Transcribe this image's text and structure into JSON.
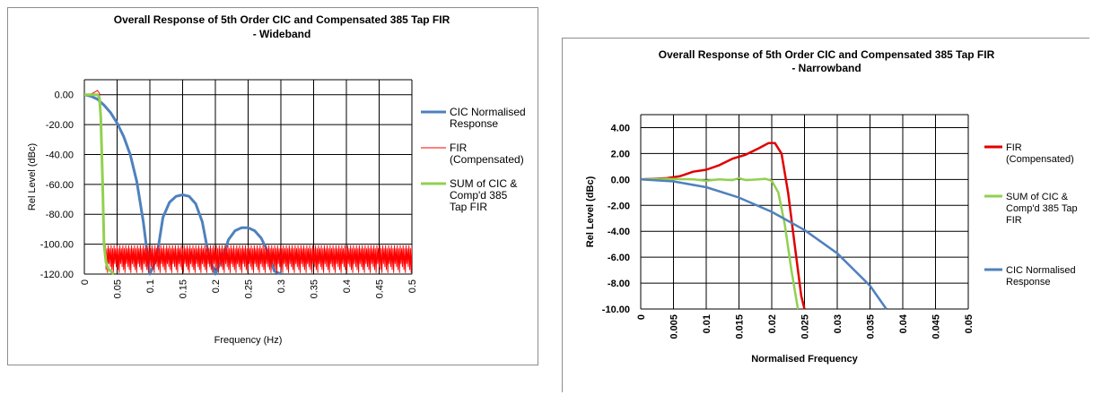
{
  "chart_data": [
    {
      "type": "line",
      "title": "Overall Response of 5th Order CIC and Compensated 385 Tap FIR",
      "subtitle": "- Wideband",
      "xlabel": "Frequency (Hz)",
      "ylabel": "Rel Level  (dBc)",
      "xlim": [
        0,
        0.5
      ],
      "ylim": [
        -120,
        10
      ],
      "x_ticks": [
        "0",
        "0.05",
        "0.1",
        "0.15",
        "0.2",
        "0.25",
        "0.3",
        "0.35",
        "0.4",
        "0.45",
        "0.5"
      ],
      "y_ticks": [
        "0.00",
        "-20.00",
        "-40.00",
        "-60.00",
        "-80.00",
        "-100.00",
        "-120.00"
      ],
      "grid": true,
      "legend_position": "right",
      "series": [
        {
          "name": "CIC Normalised Response",
          "color": "#4f81bd",
          "x": [
            0,
            0.01,
            0.02,
            0.03,
            0.04,
            0.05,
            0.06,
            0.07,
            0.08,
            0.09,
            0.1,
            0.11,
            0.12,
            0.13,
            0.14,
            0.15,
            0.16,
            0.17,
            0.18,
            0.19,
            0.2,
            0.21,
            0.22,
            0.23,
            0.24,
            0.25,
            0.26,
            0.27,
            0.28,
            0.29,
            0.3
          ],
          "y": [
            0,
            -1,
            -3,
            -7,
            -12,
            -19,
            -28,
            -40,
            -58,
            -85,
            -120,
            -110,
            -82,
            -72,
            -68,
            -67,
            -68,
            -73,
            -85,
            -108,
            -120,
            -110,
            -97,
            -91,
            -89,
            -89,
            -91,
            -96,
            -105,
            -118,
            -120
          ]
        },
        {
          "name": "FIR (Compensated)",
          "color": "#ff0000",
          "x": [
            0,
            0.01,
            0.015,
            0.02,
            0.023,
            0.025,
            0.028,
            0.03,
            0.032,
            0.5
          ],
          "y": [
            0,
            0.5,
            1.5,
            2.8,
            1,
            -10,
            -60,
            -100,
            -110,
            -108
          ]
        },
        {
          "name": "SUM  of CIC & Comp'd  385 Tap FIR",
          "color": "#92d050",
          "x": [
            0,
            0.01,
            0.02,
            0.023,
            0.025,
            0.028,
            0.03,
            0.033,
            0.036,
            0.04,
            0.045
          ],
          "y": [
            0,
            0,
            0,
            -2,
            -15,
            -60,
            -100,
            -112,
            -116,
            -118,
            -120
          ]
        }
      ]
    },
    {
      "type": "line",
      "title": "Overall Response  of 5th Order CIC and Compensated  385 Tap FIR",
      "subtitle": "- Narrowband",
      "xlabel": "Normalised Frequency",
      "ylabel": "Rel Level  (dBc)",
      "xlim": [
        0,
        0.05
      ],
      "ylim": [
        -10,
        5
      ],
      "x_ticks": [
        "0",
        "0.005",
        "0.01",
        "0.015",
        "0.02",
        "0.025",
        "0.03",
        "0.035",
        "0.04",
        "0.045",
        "0.05"
      ],
      "y_ticks": [
        "4.00",
        "2.00",
        "0.00",
        "-2.00",
        "-4.00",
        "-6.00",
        "-8.00",
        "-10.00"
      ],
      "grid": true,
      "legend_position": "right",
      "series": [
        {
          "name": "FIR (Compensated)",
          "color": "#e00000",
          "x": [
            0,
            0.002,
            0.004,
            0.006,
            0.008,
            0.01,
            0.012,
            0.014,
            0.016,
            0.018,
            0.0195,
            0.0205,
            0.0215,
            0.0225,
            0.0235,
            0.0245,
            0.025
          ],
          "y": [
            0,
            0.05,
            0.1,
            0.25,
            0.6,
            0.75,
            1.1,
            1.6,
            1.9,
            2.4,
            2.8,
            2.8,
            2.0,
            -1.0,
            -5.0,
            -9.0,
            -10.0
          ]
        },
        {
          "name": "SUM  of CIC & Comp'd 385 Tap FIR",
          "color": "#92d050",
          "x": [
            0,
            0.004,
            0.008,
            0.01,
            0.012,
            0.014,
            0.015,
            0.016,
            0.018,
            0.019,
            0.02,
            0.021,
            0.022,
            0.023,
            0.024
          ],
          "y": [
            0,
            0.05,
            0.0,
            -0.1,
            0.0,
            -0.05,
            0.1,
            -0.05,
            0.0,
            0.05,
            -0.1,
            -1.0,
            -3.5,
            -7.0,
            -10.0
          ]
        },
        {
          "name": "CIC Normalised Response",
          "color": "#4f81bd",
          "x": [
            0,
            0.005,
            0.01,
            0.015,
            0.02,
            0.025,
            0.03,
            0.035,
            0.0375
          ],
          "y": [
            0,
            -0.15,
            -0.6,
            -1.4,
            -2.5,
            -3.9,
            -5.7,
            -8.2,
            -10.0
          ]
        }
      ]
    }
  ],
  "charts_meta": [
    {
      "legend_order": [
        0,
        1,
        2
      ]
    },
    {
      "legend_order": [
        0,
        1,
        2
      ]
    }
  ]
}
